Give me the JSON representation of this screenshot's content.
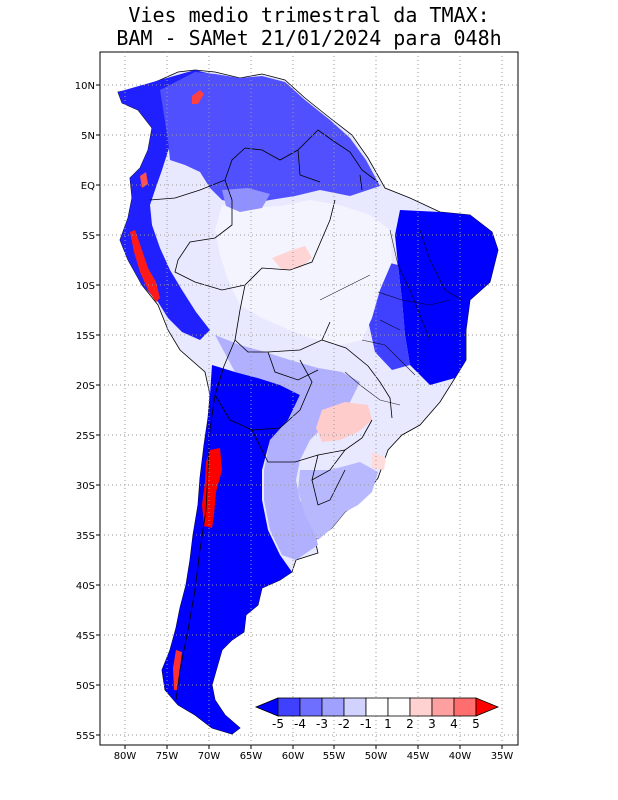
{
  "title": {
    "line1": "Vies medio trimestral da TMAX:",
    "line2": "BAM - SAMet 21/01/2024  para 048h"
  },
  "axes": {
    "lon_ticks": [
      "80W",
      "75W",
      "70W",
      "65W",
      "60W",
      "55W",
      "50W",
      "45W",
      "40W",
      "35W"
    ],
    "lat_ticks": [
      "10N",
      "5N",
      "EQ",
      "5S",
      "10S",
      "15S",
      "20S",
      "25S",
      "30S",
      "35S",
      "40S",
      "45S",
      "50S",
      "55S"
    ]
  },
  "colorbar": {
    "labels": [
      "-5",
      "-4",
      "-3",
      "-2",
      "-1",
      "1",
      "2",
      "3",
      "4",
      "5"
    ],
    "colors": [
      "#0000ff",
      "#4040ff",
      "#6e6eff",
      "#a0a0ff",
      "#d2d2ff",
      "#ffffff",
      "#ffd2d2",
      "#ffa0a0",
      "#ff6e6e",
      "#ff4040",
      "#ff0000"
    ]
  },
  "colors": {
    "strong_blue": "#0000ff",
    "mid_blue": "#4a4aff",
    "light_blue": "#a8a8ff",
    "pale_blue": "#dcdcff",
    "pale_red": "#ffd0d0",
    "red": "#ff2020",
    "grid": "#9a9a9a",
    "frame": "#000000"
  }
}
